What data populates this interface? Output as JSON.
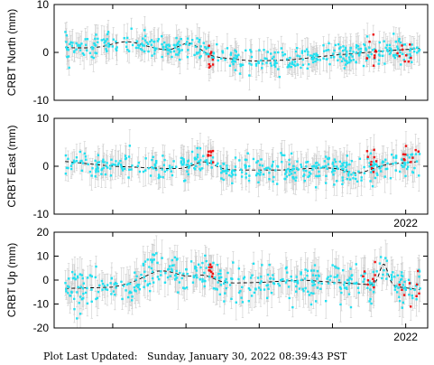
{
  "colors": {
    "series_main": "#22e0f0",
    "series_recent": "#ee1111",
    "error_bars": "#cccccc",
    "model_line": "#000000",
    "axes": "#000000"
  },
  "footer": {
    "label": "Plot Last Updated:",
    "value": "Sunday, January 30, 2022 08:39:43 PST"
  },
  "chart_data": [
    {
      "type": "scatter",
      "ylabel": "CRBT North (mm)",
      "ylim": [
        -10,
        10
      ],
      "yticks": [
        -10,
        0,
        10
      ],
      "xlim": [
        2017.2,
        2022.3
      ],
      "year_tick": 2022,
      "show_year_label": false,
      "cyan_n": 420,
      "red_n": 22,
      "noise": 1.2,
      "err": 2.2,
      "trend": [
        [
          2017.35,
          1.0
        ],
        [
          2018.6,
          0.6
        ],
        [
          2019.3,
          -0.8
        ],
        [
          2019.9,
          -1.8
        ],
        [
          2020.4,
          -1.6
        ],
        [
          2021.0,
          -0.6
        ],
        [
          2021.8,
          0.4
        ],
        [
          2022.2,
          0.8
        ]
      ],
      "bumps": [
        [
          2018.2,
          0.3,
          1.5
        ],
        [
          2019.05,
          0.2,
          2.2
        ]
      ],
      "red_groups": [
        [
          2019.3,
          2019.38,
          -1.5,
          1.2
        ],
        [
          2021.45,
          2021.6,
          -1.8,
          2.5
        ],
        [
          2021.85,
          2022.2,
          0.3,
          1.2
        ]
      ]
    },
    {
      "type": "scatter",
      "ylabel": "CRBT East (mm)",
      "ylim": [
        -10,
        10
      ],
      "yticks": [
        -10,
        0,
        10
      ],
      "xlim": [
        2017.2,
        2022.3
      ],
      "year_tick": 2022,
      "show_year_label": true,
      "cyan_n": 420,
      "red_n": 22,
      "noise": 1.4,
      "err": 2.4,
      "trend": [
        [
          2017.35,
          1.0
        ],
        [
          2018.0,
          0.0
        ],
        [
          2018.8,
          -0.5
        ],
        [
          2019.5,
          -0.8
        ],
        [
          2020.3,
          -0.8
        ],
        [
          2021.0,
          -0.2
        ],
        [
          2021.8,
          0.5
        ],
        [
          2022.2,
          1.0
        ]
      ],
      "bumps": [
        [
          2019.25,
          0.2,
          1.6
        ],
        [
          2021.35,
          0.25,
          -1.5
        ]
      ],
      "red_groups": [
        [
          2019.3,
          2019.38,
          1.8,
          1.0
        ],
        [
          2021.45,
          2021.6,
          0.8,
          1.5
        ],
        [
          2021.9,
          2022.2,
          1.8,
          1.6
        ]
      ]
    },
    {
      "type": "scatter",
      "ylabel": "CRBT Up (mm)",
      "ylim": [
        -20,
        20
      ],
      "yticks": [
        -20,
        -10,
        0,
        10,
        20
      ],
      "xlim": [
        2017.2,
        2022.3
      ],
      "year_tick": 2022,
      "show_year_label": true,
      "cyan_n": 420,
      "red_n": 22,
      "noise": 3.8,
      "err": 5.5,
      "trend": [
        [
          2017.35,
          -3.5
        ],
        [
          2018.0,
          -3.0
        ],
        [
          2018.6,
          0.0
        ],
        [
          2019.3,
          -1.5
        ],
        [
          2020.0,
          -1.0
        ],
        [
          2020.6,
          0.0
        ],
        [
          2021.3,
          -1.5
        ],
        [
          2021.8,
          -2.5
        ],
        [
          2022.2,
          -4.0
        ]
      ],
      "bumps": [
        [
          2018.7,
          0.35,
          4.0
        ],
        [
          2019.25,
          0.2,
          3.0
        ],
        [
          2021.7,
          0.08,
          9.0
        ]
      ],
      "red_groups": [
        [
          2019.3,
          2019.38,
          5.0,
          1.5
        ],
        [
          2021.4,
          2021.6,
          0.5,
          3.0
        ],
        [
          2021.9,
          2022.2,
          -4.0,
          3.0
        ]
      ]
    }
  ]
}
